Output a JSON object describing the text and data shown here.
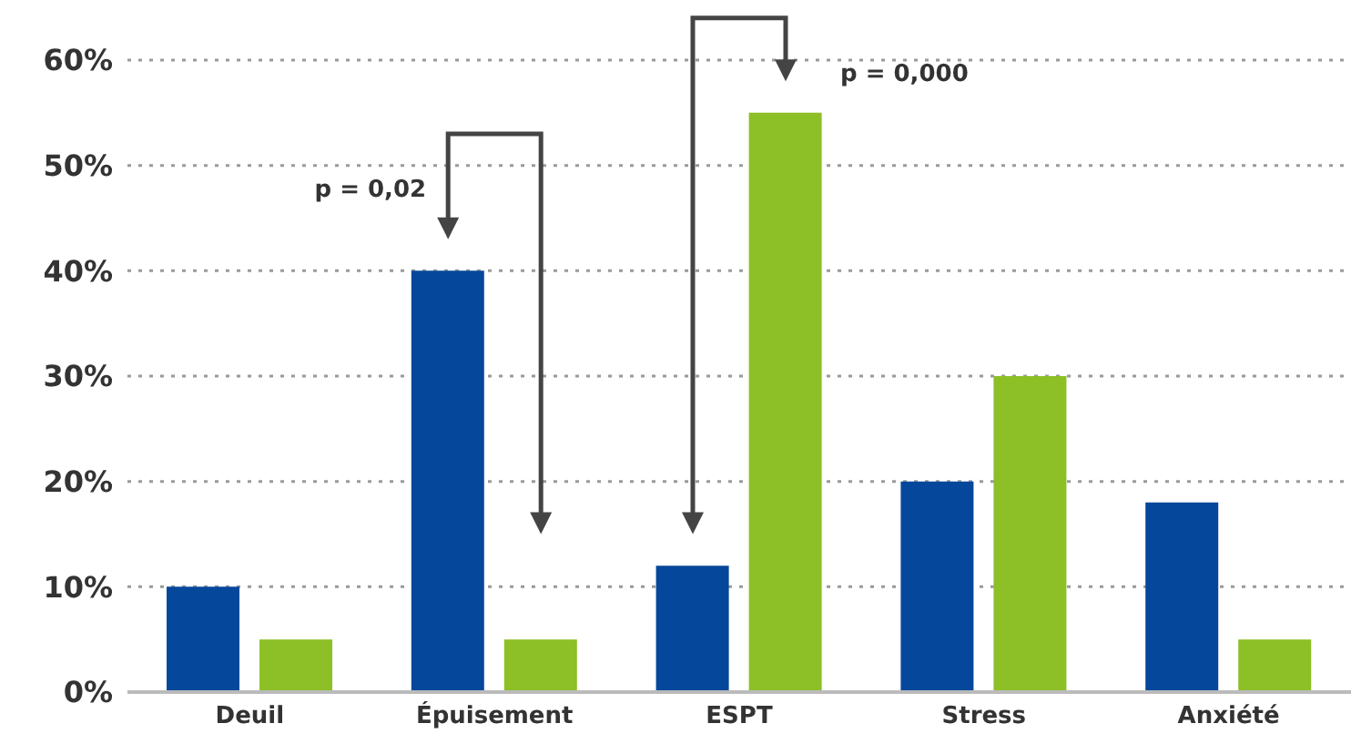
{
  "chart_data": {
    "type": "bar",
    "categories": [
      "Deuil",
      "Épuisement",
      "ESPT",
      "Stress",
      "Anxiété"
    ],
    "series": [
      {
        "color": "#05479a",
        "values": [
          10,
          40,
          12,
          20,
          18
        ]
      },
      {
        "color": "#8dbf26",
        "values": [
          5,
          5,
          55,
          30,
          5
        ]
      }
    ],
    "ylim": [
      0,
      60
    ],
    "yticks": [
      {
        "value": 0,
        "label": "0%"
      },
      {
        "value": 10,
        "label": "10%"
      },
      {
        "value": 20,
        "label": "20%"
      },
      {
        "value": 30,
        "label": "30%"
      },
      {
        "value": 40,
        "label": "40%"
      },
      {
        "value": 50,
        "label": "50%"
      },
      {
        "value": 60,
        "label": "60%"
      }
    ],
    "grid": "y",
    "annotations": [
      "p = 0,02",
      "p = 0,000"
    ]
  }
}
